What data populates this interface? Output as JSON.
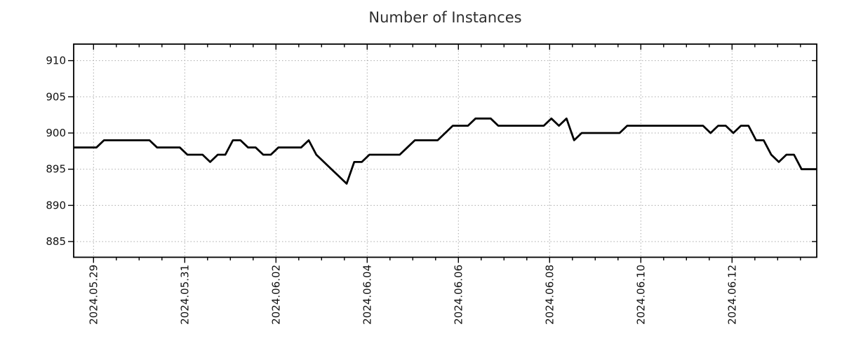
{
  "chart_data": {
    "type": "line",
    "title": "Number of Instances",
    "xlabel": "",
    "ylabel": "",
    "legend": "none",
    "grid": "dotted",
    "line_color": "#000000",
    "grid_color": "#aaaaaa",
    "frame_color": "#000000",
    "y_tick_labels": [
      "910",
      "905",
      "900",
      "895",
      "890",
      "885"
    ],
    "y_tick_values": [
      910,
      905,
      900,
      895,
      890,
      885
    ],
    "ylim": [
      882.8,
      912.3
    ],
    "x_tick_labels": [
      "2024.05.29",
      "2024.05.31",
      "2024.06.02",
      "2024.06.04",
      "2024.06.06",
      "2024.06.08",
      "2024.06.10",
      "2024.06.12"
    ],
    "x_major_tick_interval_days": 2,
    "x_minor_ticks_per_major": 4,
    "series": [
      {
        "name": "instances",
        "values": [
          898,
          898,
          898,
          898,
          899,
          899,
          899,
          899,
          899,
          899,
          899,
          898,
          898,
          898,
          898,
          897,
          897,
          897,
          896,
          897,
          897,
          899,
          899,
          898,
          898,
          897,
          897,
          898,
          898,
          898,
          898,
          899,
          897,
          896,
          895,
          894,
          893,
          896,
          896,
          897,
          897,
          897,
          897,
          897,
          898,
          899,
          899,
          899,
          899,
          900,
          901,
          901,
          901,
          902,
          902,
          902,
          901,
          901,
          901,
          901,
          901,
          901,
          901,
          902,
          901,
          902,
          899,
          900,
          900,
          900,
          900,
          900,
          900,
          901,
          901,
          901,
          901,
          901,
          901,
          901,
          901,
          901,
          901,
          901,
          900,
          901,
          901,
          900,
          901,
          901,
          899,
          899,
          897,
          896,
          897,
          897,
          895,
          895,
          895
        ]
      }
    ]
  }
}
